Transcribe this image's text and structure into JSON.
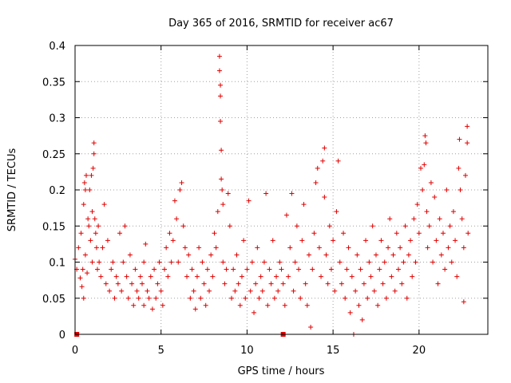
{
  "chart_data": {
    "type": "scatter",
    "title": "Day 365 of 2016, SRMTID for receiver ac67",
    "xlabel": "GPS time / hours",
    "ylabel": "SRMTID / TECUs",
    "xlim": [
      0,
      24
    ],
    "ylim": [
      0,
      0.4
    ],
    "xticks": [
      0,
      5,
      10,
      15,
      20
    ],
    "xtick_labels": [
      "0",
      "5",
      "10",
      "15",
      "20"
    ],
    "yticks": [
      0,
      0.05,
      0.1,
      0.15,
      0.2,
      0.25,
      0.3,
      0.35,
      0.4
    ],
    "ytick_labels": [
      "0",
      "0.05",
      "0.1",
      "0.15",
      "0.2",
      "0.25",
      "0.3",
      "0.35",
      "0.4"
    ],
    "grid": true,
    "marker": "+",
    "color": "#e00000",
    "series": [
      {
        "name": "SRMTID",
        "points": [
          [
            0.0,
            0.104
          ],
          [
            0.1,
            0.09
          ],
          [
            0.2,
            0.12
          ],
          [
            0.3,
            0.078
          ],
          [
            0.35,
            0.14
          ],
          [
            0.4,
            0.066
          ],
          [
            0.45,
            0.09
          ],
          [
            0.5,
            0.18
          ],
          [
            0.5,
            0.05
          ],
          [
            0.55,
            0.21
          ],
          [
            0.6,
            0.2
          ],
          [
            0.6,
            0.11
          ],
          [
            0.65,
            0.22
          ],
          [
            0.7,
            0.085
          ],
          [
            0.75,
            0.16
          ],
          [
            0.8,
            0.15
          ],
          [
            0.85,
            0.2
          ],
          [
            0.9,
            0.13
          ],
          [
            0.95,
            0.22
          ],
          [
            1.0,
            0.17
          ],
          [
            1.0,
            0.1
          ],
          [
            1.05,
            0.23
          ],
          [
            1.1,
            0.265
          ],
          [
            1.1,
            0.25
          ],
          [
            1.15,
            0.16
          ],
          [
            1.2,
            0.14
          ],
          [
            1.25,
            0.12
          ],
          [
            1.3,
            0.09
          ],
          [
            1.35,
            0.15
          ],
          [
            1.4,
            0.1
          ],
          [
            1.5,
            0.08
          ],
          [
            1.6,
            0.12
          ],
          [
            1.7,
            0.18
          ],
          [
            1.8,
            0.07
          ],
          [
            1.9,
            0.13
          ],
          [
            2.0,
            0.06
          ],
          [
            2.1,
            0.09
          ],
          [
            2.2,
            0.1
          ],
          [
            2.3,
            0.05
          ],
          [
            2.4,
            0.08
          ],
          [
            2.5,
            0.07
          ],
          [
            2.6,
            0.14
          ],
          [
            2.7,
            0.06
          ],
          [
            2.8,
            0.1
          ],
          [
            2.9,
            0.15
          ],
          [
            3.0,
            0.08
          ],
          [
            3.1,
            0.05
          ],
          [
            3.2,
            0.11
          ],
          [
            3.3,
            0.07
          ],
          [
            3.4,
            0.04
          ],
          [
            3.5,
            0.09
          ],
          [
            3.6,
            0.06
          ],
          [
            3.7,
            0.05
          ],
          [
            3.8,
            0.08
          ],
          [
            3.9,
            0.07
          ],
          [
            4.0,
            0.1
          ],
          [
            4.0,
            0.04
          ],
          [
            4.1,
            0.125
          ],
          [
            4.2,
            0.06
          ],
          [
            4.3,
            0.05
          ],
          [
            4.4,
            0.08
          ],
          [
            4.5,
            0.035
          ],
          [
            4.6,
            0.09
          ],
          [
            4.7,
            0.05
          ],
          [
            4.8,
            0.07
          ],
          [
            4.9,
            0.1
          ],
          [
            5.0,
            0.06
          ],
          [
            5.1,
            0.04
          ],
          [
            5.2,
            0.09
          ],
          [
            5.3,
            0.12
          ],
          [
            5.4,
            0.08
          ],
          [
            5.5,
            0.14
          ],
          [
            5.6,
            0.1
          ],
          [
            5.7,
            0.13
          ],
          [
            5.8,
            0.185
          ],
          [
            5.9,
            0.16
          ],
          [
            6.0,
            0.1
          ],
          [
            6.1,
            0.2
          ],
          [
            6.2,
            0.21
          ],
          [
            6.3,
            0.15
          ],
          [
            6.4,
            0.12
          ],
          [
            6.5,
            0.08
          ],
          [
            6.6,
            0.11
          ],
          [
            6.7,
            0.05
          ],
          [
            6.8,
            0.09
          ],
          [
            6.9,
            0.06
          ],
          [
            7.0,
            0.035
          ],
          [
            7.1,
            0.08
          ],
          [
            7.2,
            0.12
          ],
          [
            7.3,
            0.05
          ],
          [
            7.4,
            0.1
          ],
          [
            7.5,
            0.07
          ],
          [
            7.6,
            0.04
          ],
          [
            7.7,
            0.09
          ],
          [
            7.8,
            0.06
          ],
          [
            7.9,
            0.11
          ],
          [
            8.0,
            0.08
          ],
          [
            8.1,
            0.14
          ],
          [
            8.2,
            0.12
          ],
          [
            8.3,
            0.17
          ],
          [
            8.4,
            0.385
          ],
          [
            8.4,
            0.365
          ],
          [
            8.45,
            0.345
          ],
          [
            8.45,
            0.33
          ],
          [
            8.45,
            0.295
          ],
          [
            8.5,
            0.255
          ],
          [
            8.5,
            0.215
          ],
          [
            8.55,
            0.2
          ],
          [
            8.6,
            0.18
          ],
          [
            8.6,
            0.1
          ],
          [
            8.7,
            0.07
          ],
          [
            8.8,
            0.09
          ],
          [
            8.9,
            0.195
          ],
          [
            9.0,
            0.15
          ],
          [
            9.1,
            0.05
          ],
          [
            9.2,
            0.09
          ],
          [
            9.3,
            0.06
          ],
          [
            9.4,
            0.11
          ],
          [
            9.5,
            0.07
          ],
          [
            9.6,
            0.04
          ],
          [
            9.7,
            0.08
          ],
          [
            9.8,
            0.13
          ],
          [
            9.9,
            0.05
          ],
          [
            10.0,
            0.09
          ],
          [
            10.1,
            0.185
          ],
          [
            10.2,
            0.06
          ],
          [
            10.3,
            0.1
          ],
          [
            10.4,
            0.03
          ],
          [
            10.5,
            0.07
          ],
          [
            10.6,
            0.12
          ],
          [
            10.7,
            0.05
          ],
          [
            10.8,
            0.08
          ],
          [
            10.9,
            0.06
          ],
          [
            11.0,
            0.1
          ],
          [
            11.1,
            0.195
          ],
          [
            11.2,
            0.04
          ],
          [
            11.3,
            0.09
          ],
          [
            11.4,
            0.07
          ],
          [
            11.5,
            0.13
          ],
          [
            11.6,
            0.05
          ],
          [
            11.7,
            0.08
          ],
          [
            11.8,
            0.06
          ],
          [
            11.9,
            0.1
          ],
          [
            12.0,
            0.09
          ],
          [
            12.1,
            0.07
          ],
          [
            12.2,
            0.04
          ],
          [
            12.3,
            0.165
          ],
          [
            12.4,
            0.08
          ],
          [
            12.5,
            0.12
          ],
          [
            12.6,
            0.195
          ],
          [
            12.7,
            0.06
          ],
          [
            12.8,
            0.1
          ],
          [
            12.9,
            0.15
          ],
          [
            13.0,
            0.09
          ],
          [
            13.1,
            0.05
          ],
          [
            13.2,
            0.13
          ],
          [
            13.3,
            0.18
          ],
          [
            13.4,
            0.07
          ],
          [
            13.5,
            0.04
          ],
          [
            13.6,
            0.11
          ],
          [
            13.7,
            0.01
          ],
          [
            13.8,
            0.09
          ],
          [
            13.9,
            0.14
          ],
          [
            14.0,
            0.21
          ],
          [
            14.1,
            0.23
          ],
          [
            14.2,
            0.12
          ],
          [
            14.3,
            0.08
          ],
          [
            14.4,
            0.24
          ],
          [
            14.5,
            0.258
          ],
          [
            14.5,
            0.19
          ],
          [
            14.6,
            0.11
          ],
          [
            14.7,
            0.07
          ],
          [
            14.8,
            0.15
          ],
          [
            14.9,
            0.09
          ],
          [
            15.0,
            0.13
          ],
          [
            15.1,
            0.06
          ],
          [
            15.2,
            0.17
          ],
          [
            15.3,
            0.24
          ],
          [
            15.4,
            0.1
          ],
          [
            15.5,
            0.07
          ],
          [
            15.6,
            0.14
          ],
          [
            15.7,
            0.05
          ],
          [
            15.8,
            0.09
          ],
          [
            15.9,
            0.12
          ],
          [
            16.0,
            0.03
          ],
          [
            16.1,
            0.08
          ],
          [
            16.2,
            0.0
          ],
          [
            16.3,
            0.06
          ],
          [
            16.4,
            0.11
          ],
          [
            16.5,
            0.04
          ],
          [
            16.6,
            0.09
          ],
          [
            16.7,
            0.02
          ],
          [
            16.8,
            0.07
          ],
          [
            16.9,
            0.13
          ],
          [
            17.0,
            0.05
          ],
          [
            17.1,
            0.1
          ],
          [
            17.2,
            0.08
          ],
          [
            17.3,
            0.15
          ],
          [
            17.4,
            0.06
          ],
          [
            17.5,
            0.11
          ],
          [
            17.6,
            0.04
          ],
          [
            17.7,
            0.09
          ],
          [
            17.8,
            0.13
          ],
          [
            17.9,
            0.07
          ],
          [
            18.0,
            0.1
          ],
          [
            18.1,
            0.05
          ],
          [
            18.2,
            0.12
          ],
          [
            18.3,
            0.16
          ],
          [
            18.4,
            0.08
          ],
          [
            18.5,
            0.11
          ],
          [
            18.6,
            0.06
          ],
          [
            18.7,
            0.14
          ],
          [
            18.8,
            0.09
          ],
          [
            18.9,
            0.12
          ],
          [
            19.0,
            0.07
          ],
          [
            19.1,
            0.1
          ],
          [
            19.2,
            0.15
          ],
          [
            19.3,
            0.05
          ],
          [
            19.4,
            0.11
          ],
          [
            19.5,
            0.13
          ],
          [
            19.6,
            0.08
          ],
          [
            19.7,
            0.16
          ],
          [
            19.8,
            0.1
          ],
          [
            19.9,
            0.18
          ],
          [
            20.0,
            0.14
          ],
          [
            20.1,
            0.23
          ],
          [
            20.2,
            0.2
          ],
          [
            20.3,
            0.235
          ],
          [
            20.35,
            0.275
          ],
          [
            20.4,
            0.265
          ],
          [
            20.45,
            0.17
          ],
          [
            20.5,
            0.12
          ],
          [
            20.6,
            0.15
          ],
          [
            20.7,
            0.21
          ],
          [
            20.8,
            0.1
          ],
          [
            20.9,
            0.19
          ],
          [
            21.0,
            0.13
          ],
          [
            21.1,
            0.07
          ],
          [
            21.2,
            0.16
          ],
          [
            21.3,
            0.11
          ],
          [
            21.4,
            0.14
          ],
          [
            21.5,
            0.09
          ],
          [
            21.6,
            0.2
          ],
          [
            21.7,
            0.12
          ],
          [
            21.8,
            0.15
          ],
          [
            21.9,
            0.1
          ],
          [
            22.0,
            0.17
          ],
          [
            22.1,
            0.13
          ],
          [
            22.2,
            0.08
          ],
          [
            22.3,
            0.23
          ],
          [
            22.35,
            0.27
          ],
          [
            22.4,
            0.2
          ],
          [
            22.5,
            0.16
          ],
          [
            22.6,
            0.12
          ],
          [
            22.6,
            0.045
          ],
          [
            22.7,
            0.22
          ],
          [
            22.8,
            0.288
          ],
          [
            22.8,
            0.265
          ],
          [
            22.85,
            0.14
          ]
        ],
        "baseline_markers": [
          0.1,
          12.1
        ]
      }
    ]
  }
}
